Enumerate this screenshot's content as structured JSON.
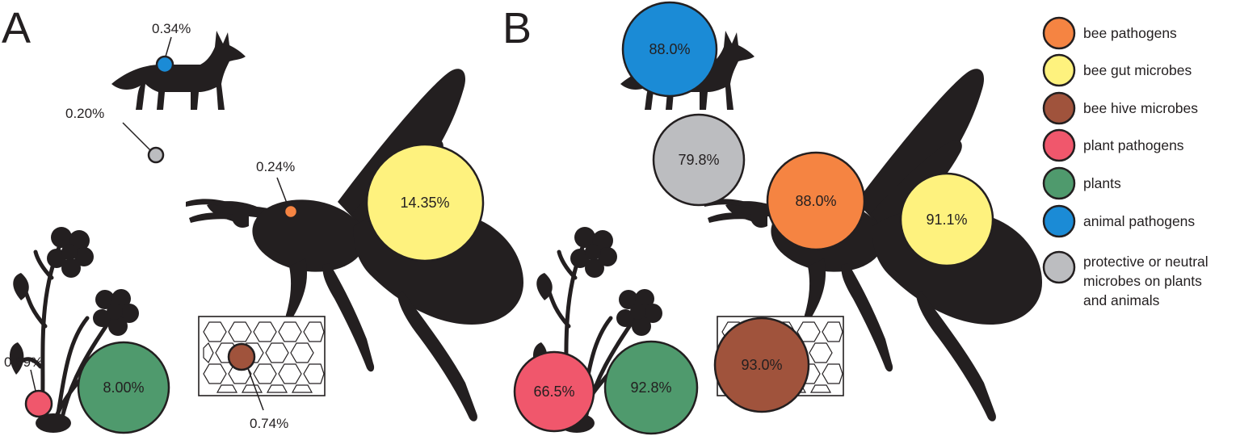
{
  "panels": {
    "a": {
      "letter": "A",
      "values": {
        "bee_pathogens": "0.24%",
        "bee_gut_microbes": "14.35%",
        "bee_hive_microbes": "0.74%",
        "plant_pathogens": "0.69%",
        "plants": "8.00%",
        "animal_pathogens": "0.34%",
        "protective_neutral": "0.20%"
      }
    },
    "b": {
      "letter": "B",
      "values": {
        "bee_pathogens": "88.0%",
        "bee_gut_microbes": "91.1%",
        "bee_hive_microbes": "93.0%",
        "plant_pathogens": "66.5%",
        "plants": "92.8%",
        "animal_pathogens": "88.0%",
        "protective_neutral": "79.8%"
      }
    }
  },
  "legend": [
    {
      "key": "bee_pathogens",
      "label": "bee pathogens",
      "color": "#f58442"
    },
    {
      "key": "bee_gut_microbes",
      "label": "bee gut microbes",
      "color": "#fef27e"
    },
    {
      "key": "bee_hive_microbes",
      "label": "bee hive microbes",
      "color": "#a0533c"
    },
    {
      "key": "plant_pathogens",
      "label": "plant pathogens",
      "color": "#f0576c"
    },
    {
      "key": "plants",
      "label": "plants",
      "color": "#4f9a6d"
    },
    {
      "key": "animal_pathogens",
      "label": "animal pathogens",
      "color": "#1b8bd6"
    },
    {
      "key": "protective_neutral",
      "label_lines": [
        "protective or neutral",
        "microbes on plants",
        "and animals"
      ],
      "color": "#bcbdc0"
    }
  ],
  "silhouette_color": "#231f20"
}
